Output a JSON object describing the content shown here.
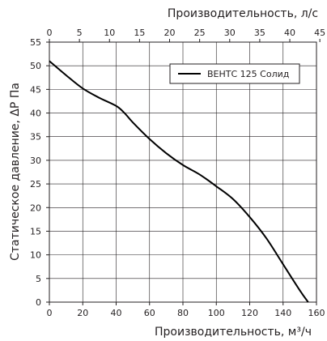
{
  "chart_data": {
    "type": "line",
    "title": "",
    "xlabel": "Производительность, м³/ч",
    "x2label": "Производительность, л/с",
    "ylabel": "Статическое давление, ΔР Па",
    "xlim": [
      0,
      160
    ],
    "x2lim": [
      0,
      44.44
    ],
    "ylim": [
      0,
      55
    ],
    "x_ticks": [
      0,
      20,
      40,
      60,
      80,
      100,
      120,
      140,
      160
    ],
    "x2_ticks": [
      0,
      5,
      10,
      15,
      20,
      25,
      30,
      35,
      40,
      45
    ],
    "y_ticks": [
      0,
      5,
      10,
      15,
      20,
      25,
      30,
      35,
      40,
      45,
      50,
      55
    ],
    "grid": true,
    "legend_position": "top-right",
    "series": [
      {
        "name": "ВЕНТС 125 Солид",
        "color": "#000000",
        "x": [
          0,
          10,
          20,
          30,
          40,
          45,
          50,
          60,
          70,
          80,
          90,
          100,
          110,
          120,
          130,
          140,
          150,
          155
        ],
        "y": [
          51,
          48,
          45.2,
          43.2,
          41.5,
          40,
          38,
          34.5,
          31.5,
          29,
          27,
          24.5,
          21.8,
          18,
          13.5,
          8,
          2.5,
          0
        ]
      }
    ]
  }
}
